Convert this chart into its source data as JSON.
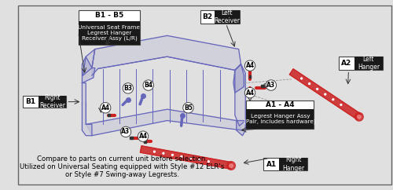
{
  "bg_color": "#e0e0e0",
  "border_color": "#666666",
  "blue": "#6666bb",
  "red": "#cc2222",
  "dark": "#1a1a1a",
  "white": "#ffffff",
  "gray": "#888888",
  "note_text": "Compare to parts on current unit before selection.\nUtilized on Universal Seating equipped with Style #12 ELR's\nor Style #7 Swing-away Legrests.",
  "B1B5_title": "B1 - B5",
  "B1B5_sub": "Universal Seat Frame\nLegrest Hanger\nReceiver Assy (L/R)",
  "A1A4_title": "A1 - A4",
  "A1A4_sub": "Legrest Hanger Assy\n(Pair, includes hardware)",
  "B2_code": "B2",
  "B2_name": "Left\nReceiver",
  "B1_code": "B1",
  "B1_name": "Right\nReceiver",
  "A2_code": "A2",
  "A2_name": "Left\nHanger",
  "A1_code": "A1",
  "A1_name": "Right\nHanger"
}
